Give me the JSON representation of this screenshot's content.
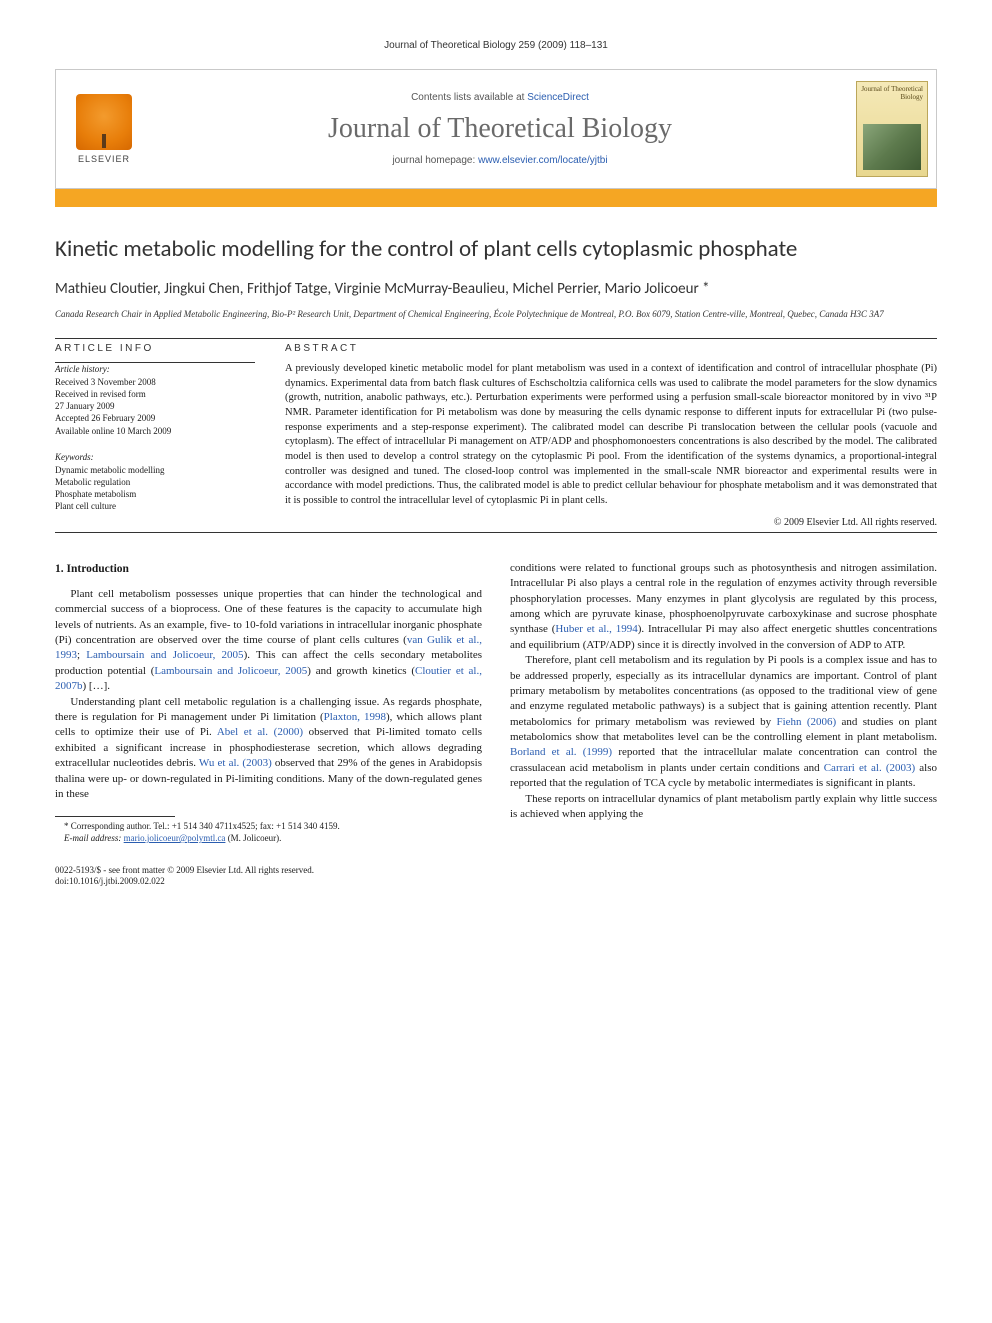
{
  "running_head": "Journal of Theoretical Biology 259 (2009) 118–131",
  "banner": {
    "publisher": "ELSEVIER",
    "contents_prefix": "Contents lists available at ",
    "contents_link": "ScienceDirect",
    "journal": "Journal of Theoretical Biology",
    "homepage_prefix": "journal homepage: ",
    "homepage_url": "www.elsevier.com/locate/yjtbi",
    "cover_title": "Journal of Theoretical Biology"
  },
  "title": "Kinetic metabolic modelling for the control of plant cells cytoplasmic phosphate",
  "authors": "Mathieu Cloutier, Jingkui Chen, Frithjof Tatge, Virginie McMurray-Beaulieu, Michel Perrier, Mario Jolicoeur *",
  "affiliation": "Canada Research Chair in Applied Metabolic Engineering, Bio-P² Research Unit, Department of Chemical Engineering, École Polytechnique de Montreal, P.O. Box 6079, Station Centre-ville, Montreal, Quebec, Canada H3C 3A7",
  "article_info": {
    "head": "ARTICLE INFO",
    "history_head": "Article history:",
    "history": [
      "Received 3 November 2008",
      "Received in revised form",
      "27 January 2009",
      "Accepted 26 February 2009",
      "Available online 10 March 2009"
    ],
    "keywords_head": "Keywords:",
    "keywords": [
      "Dynamic metabolic modelling",
      "Metabolic regulation",
      "Phosphate metabolism",
      "Plant cell culture"
    ]
  },
  "abstract": {
    "head": "ABSTRACT",
    "text": "A previously developed kinetic metabolic model for plant metabolism was used in a context of identification and control of intracellular phosphate (Pi) dynamics. Experimental data from batch flask cultures of Eschscholtzia californica cells was used to calibrate the model parameters for the slow dynamics (growth, nutrition, anabolic pathways, etc.). Perturbation experiments were performed using a perfusion small-scale bioreactor monitored by in vivo ³¹P NMR. Parameter identification for Pi metabolism was done by measuring the cells dynamic response to different inputs for extracellular Pi (two pulse-response experiments and a step-response experiment). The calibrated model can describe Pi translocation between the cellular pools (vacuole and cytoplasm). The effect of intracellular Pi management on ATP/ADP and phosphomonoesters concentrations is also described by the model. The calibrated model is then used to develop a control strategy on the cytoplasmic Pi pool. From the identification of the systems dynamics, a proportional-integral controller was designed and tuned. The closed-loop control was implemented in the small-scale NMR bioreactor and experimental results were in accordance with model predictions. Thus, the calibrated model is able to predict cellular behaviour for phosphate metabolism and it was demonstrated that it is possible to control the intracellular level of cytoplasmic Pi in plant cells.",
    "copyright": "© 2009 Elsevier Ltd. All rights reserved."
  },
  "body": {
    "section1_head": "1. Introduction",
    "p1a": "Plant cell metabolism possesses unique properties that can hinder the technological and commercial success of a bioprocess. One of these features is the capacity to accumulate high levels of nutrients. As an example, five- to 10-fold variations in intracellular inorganic phosphate (Pi) concentration are observed over the time course of plant cells cultures (",
    "c1": "van Gulik et al., 1993",
    "p1b": "; ",
    "c2": "Lamboursain and Jolicoeur, 2005",
    "p1c": "). This can affect the cells secondary metabolites production potential (",
    "c3": "Lamboursain and Jolicoeur, 2005",
    "p1d": ") and growth kinetics (",
    "c4": "Cloutier et al., 2007b",
    "p1e": ") […].",
    "p2a": "Understanding plant cell metabolic regulation is a challenging issue. As regards phosphate, there is regulation for Pi management under Pi limitation (",
    "c5": "Plaxton, 1998",
    "p2b": "), which allows plant cells to optimize their use of Pi. ",
    "c6": "Abel et al. (2000)",
    "p2c": " observed that Pi-limited tomato cells exhibited a significant increase in phosphodiesterase secretion, which allows degrading extracellular nucleotides debris. ",
    "c7": "Wu et al. (2003)",
    "p2d": " observed that 29% of the genes in Arabidopsis thalina were up- or down-regulated in Pi-limiting conditions. Many of the down-regulated genes in these ",
    "p2e": "conditions were related to functional groups such as photosynthesis and nitrogen assimilation. Intracellular Pi also plays a central role in the regulation of enzymes activity through reversible phosphorylation processes. Many enzymes in plant glycolysis are regulated by this process, among which are pyruvate kinase, phosphoenolpyruvate carboxykinase and sucrose phosphate synthase (",
    "c8": "Huber et al., 1994",
    "p2f": "). Intracellular Pi may also affect energetic shuttles concentrations and equilibrium (ATP/ADP) since it is directly involved in the conversion of ADP to ATP.",
    "p3a": "Therefore, plant cell metabolism and its regulation by Pi pools is a complex issue and has to be addressed properly, especially as its intracellular dynamics are important. Control of plant primary metabolism by metabolites concentrations (as opposed to the traditional view of gene and enzyme regulated metabolic pathways) is a subject that is gaining attention recently. Plant metabolomics for primary metabolism was reviewed by ",
    "c9": "Fiehn (2006)",
    "p3b": " and studies on plant metabolomics show that metabolites level can be the controlling element in plant metabolism. ",
    "c10": "Borland et al. (1999)",
    "p3c": " reported that the intracellular malate concentration can control the crassulacean acid metabolism in plants under certain conditions and ",
    "c11": "Carrari et al. (2003)",
    "p3d": " also reported that the regulation of TCA cycle by metabolic intermediates is significant in plants.",
    "p4": "These reports on intracellular dynamics of plant metabolism partly explain why little success is achieved when applying the"
  },
  "footnote": {
    "corr": "* Corresponding author. Tel.: +1 514 340 4711x4525; fax: +1 514 340 4159.",
    "email_label": "E-mail address:",
    "email": "mario.jolicoeur@polymtl.ca",
    "email_who": "(M. Jolicoeur)."
  },
  "footer": {
    "line1": "0022-5193/$ - see front matter © 2009 Elsevier Ltd. All rights reserved.",
    "line2": "doi:10.1016/j.jtbi.2009.02.022"
  },
  "colors": {
    "orange_bar": "#f5a623",
    "link": "#2a5db0",
    "journal_gray": "#6a6a6a"
  }
}
